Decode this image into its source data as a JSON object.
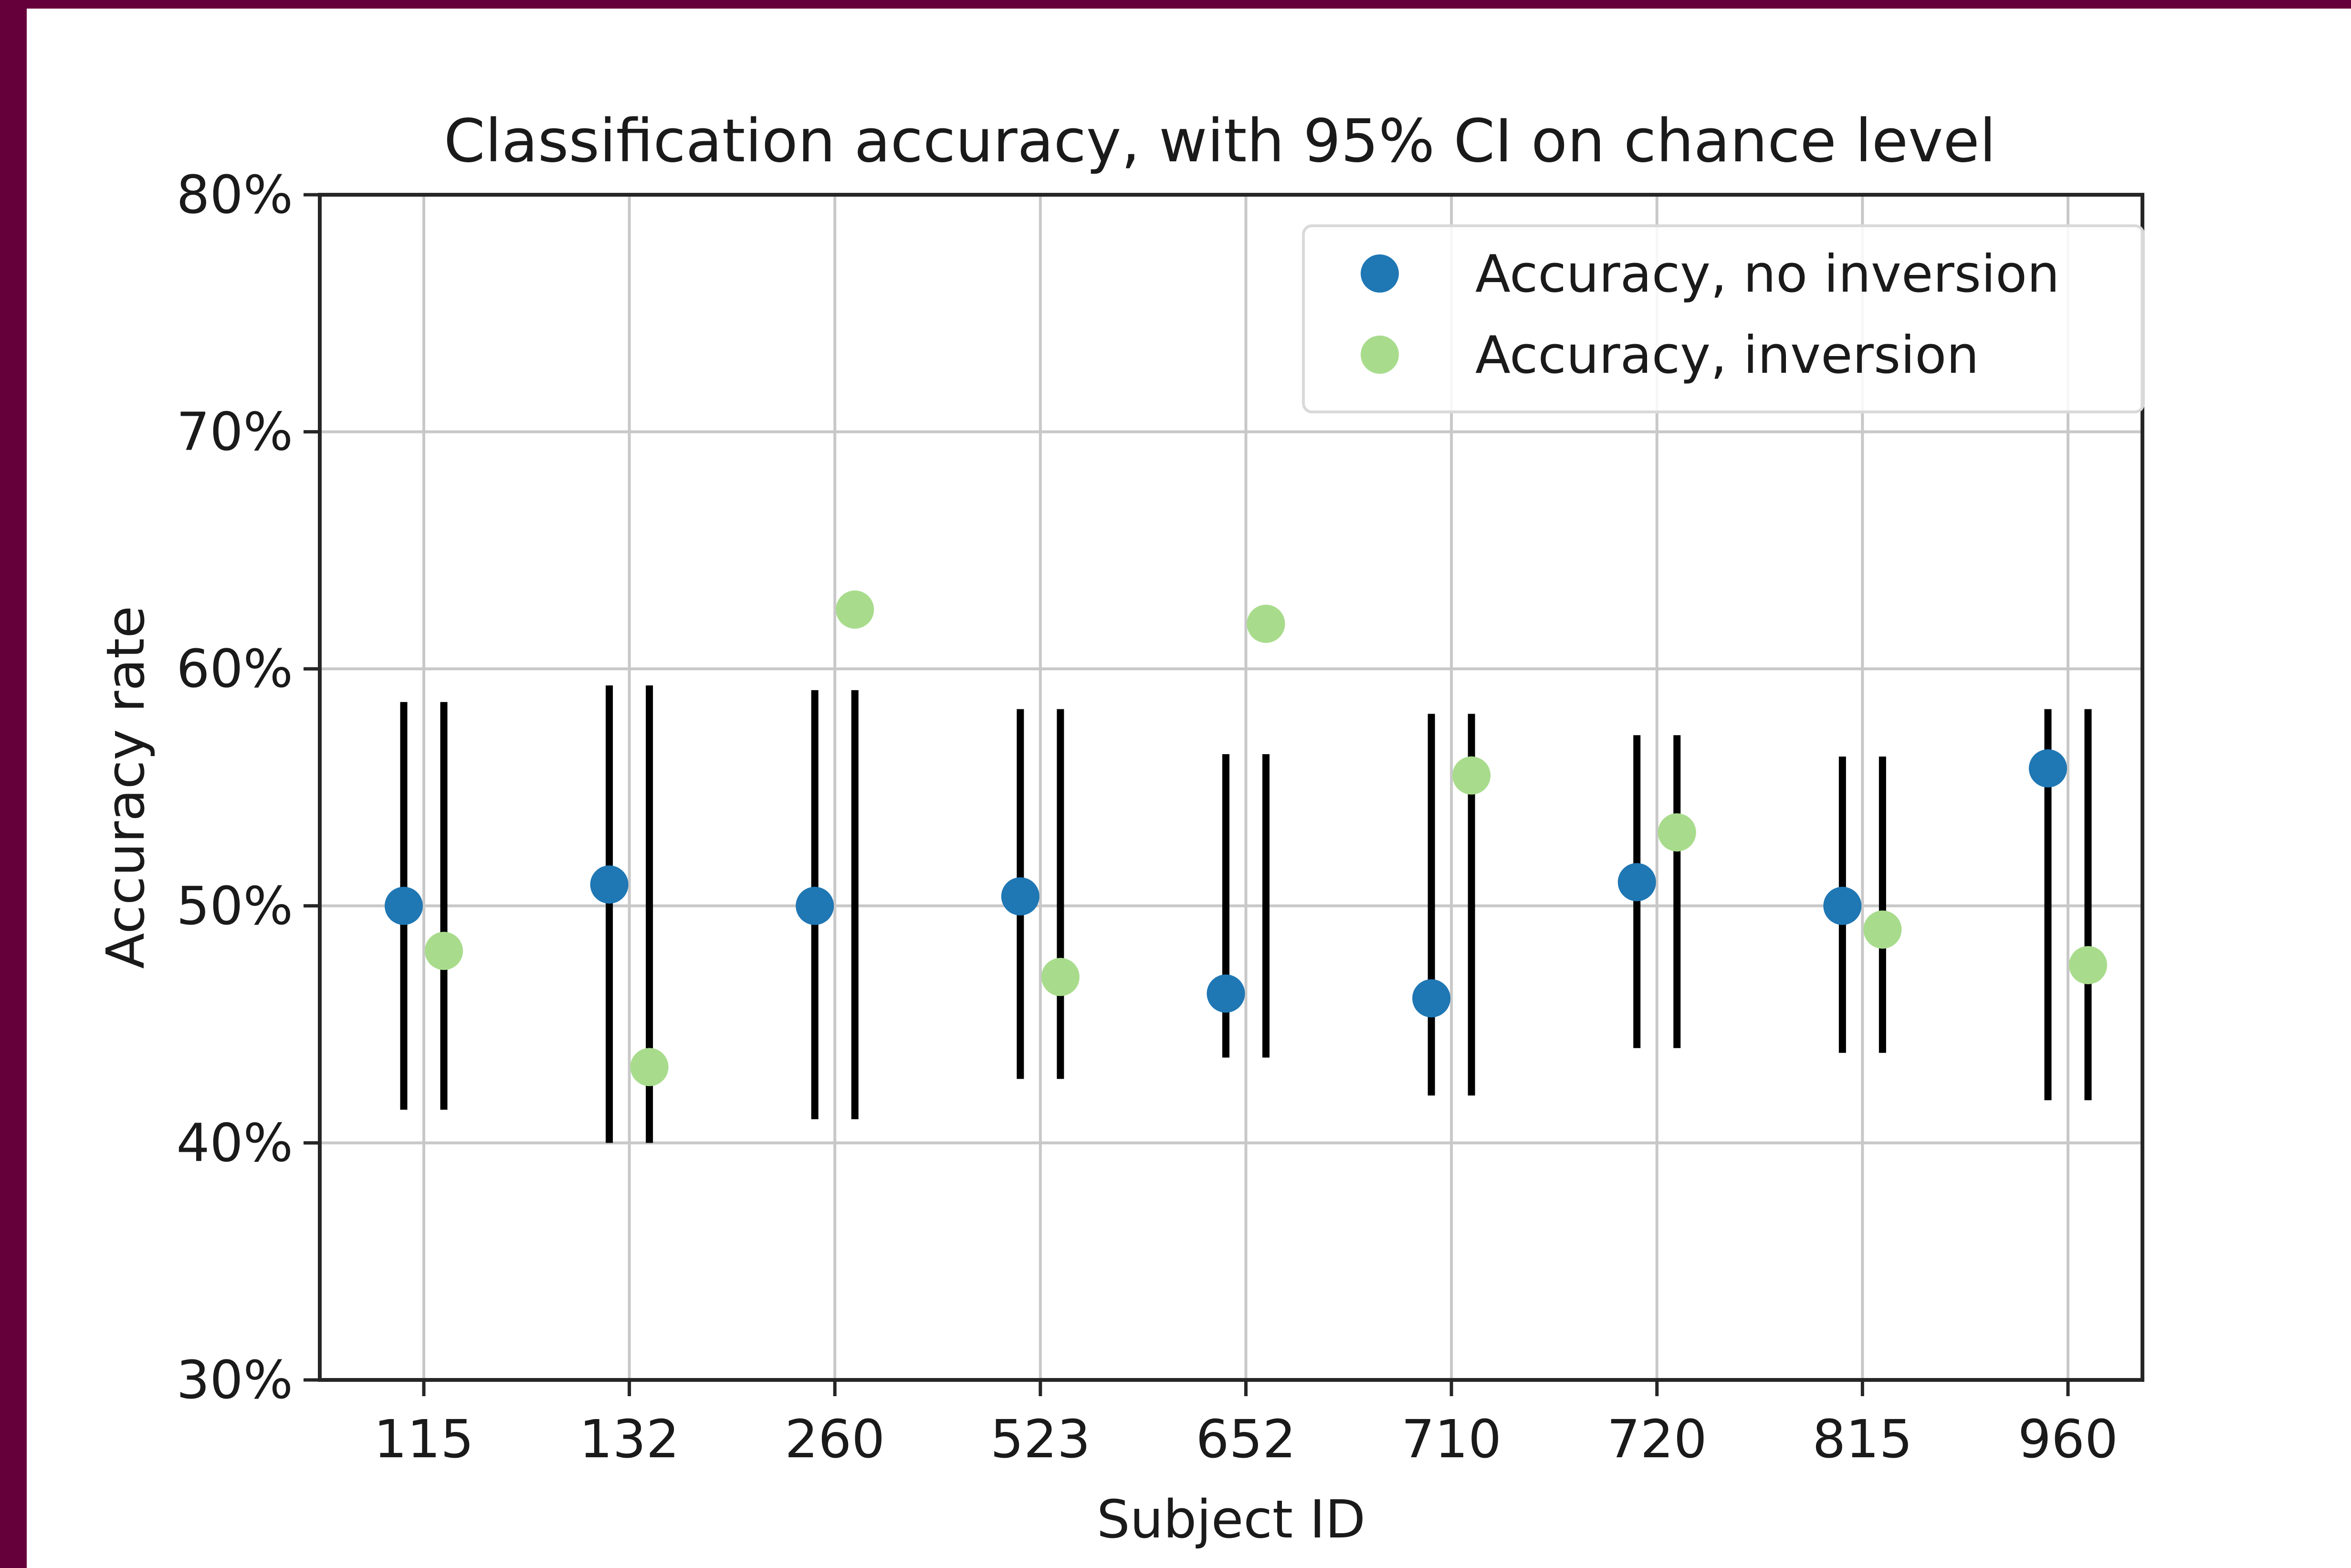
{
  "chart_data": {
    "type": "scatter",
    "title": "Classification accuracy, with 95% CI on chance level",
    "xlabel": "Subject ID",
    "ylabel": "Accuracy rate",
    "categories": [
      "115",
      "132",
      "260",
      "523",
      "652",
      "710",
      "720",
      "815",
      "960"
    ],
    "yticks": [
      "30%",
      "40%",
      "50%",
      "60%",
      "70%",
      "80%"
    ],
    "ylim": [
      0.3,
      0.8
    ],
    "grid": true,
    "legend": "top-right",
    "series": [
      {
        "name": "Accuracy, no inversion",
        "color": "#1f77b4",
        "values": [
          0.5,
          0.509,
          0.5,
          0.504,
          0.463,
          0.461,
          0.51,
          0.5,
          0.558
        ],
        "ci_low": [
          0.414,
          0.4,
          0.41,
          0.427,
          0.436,
          0.42,
          0.44,
          0.438,
          0.418
        ],
        "ci_high": [
          0.586,
          0.593,
          0.591,
          0.583,
          0.564,
          0.581,
          0.572,
          0.563,
          0.583
        ]
      },
      {
        "name": "Accuracy, inversion",
        "color": "#a8dc8c",
        "values": [
          0.481,
          0.432,
          0.625,
          0.47,
          0.619,
          0.555,
          0.531,
          0.49,
          0.475
        ],
        "ci_low": [
          0.414,
          0.4,
          0.41,
          0.427,
          0.436,
          0.42,
          0.44,
          0.438,
          0.418
        ],
        "ci_high": [
          0.586,
          0.593,
          0.591,
          0.583,
          0.564,
          0.581,
          0.572,
          0.563,
          0.583
        ]
      }
    ]
  }
}
